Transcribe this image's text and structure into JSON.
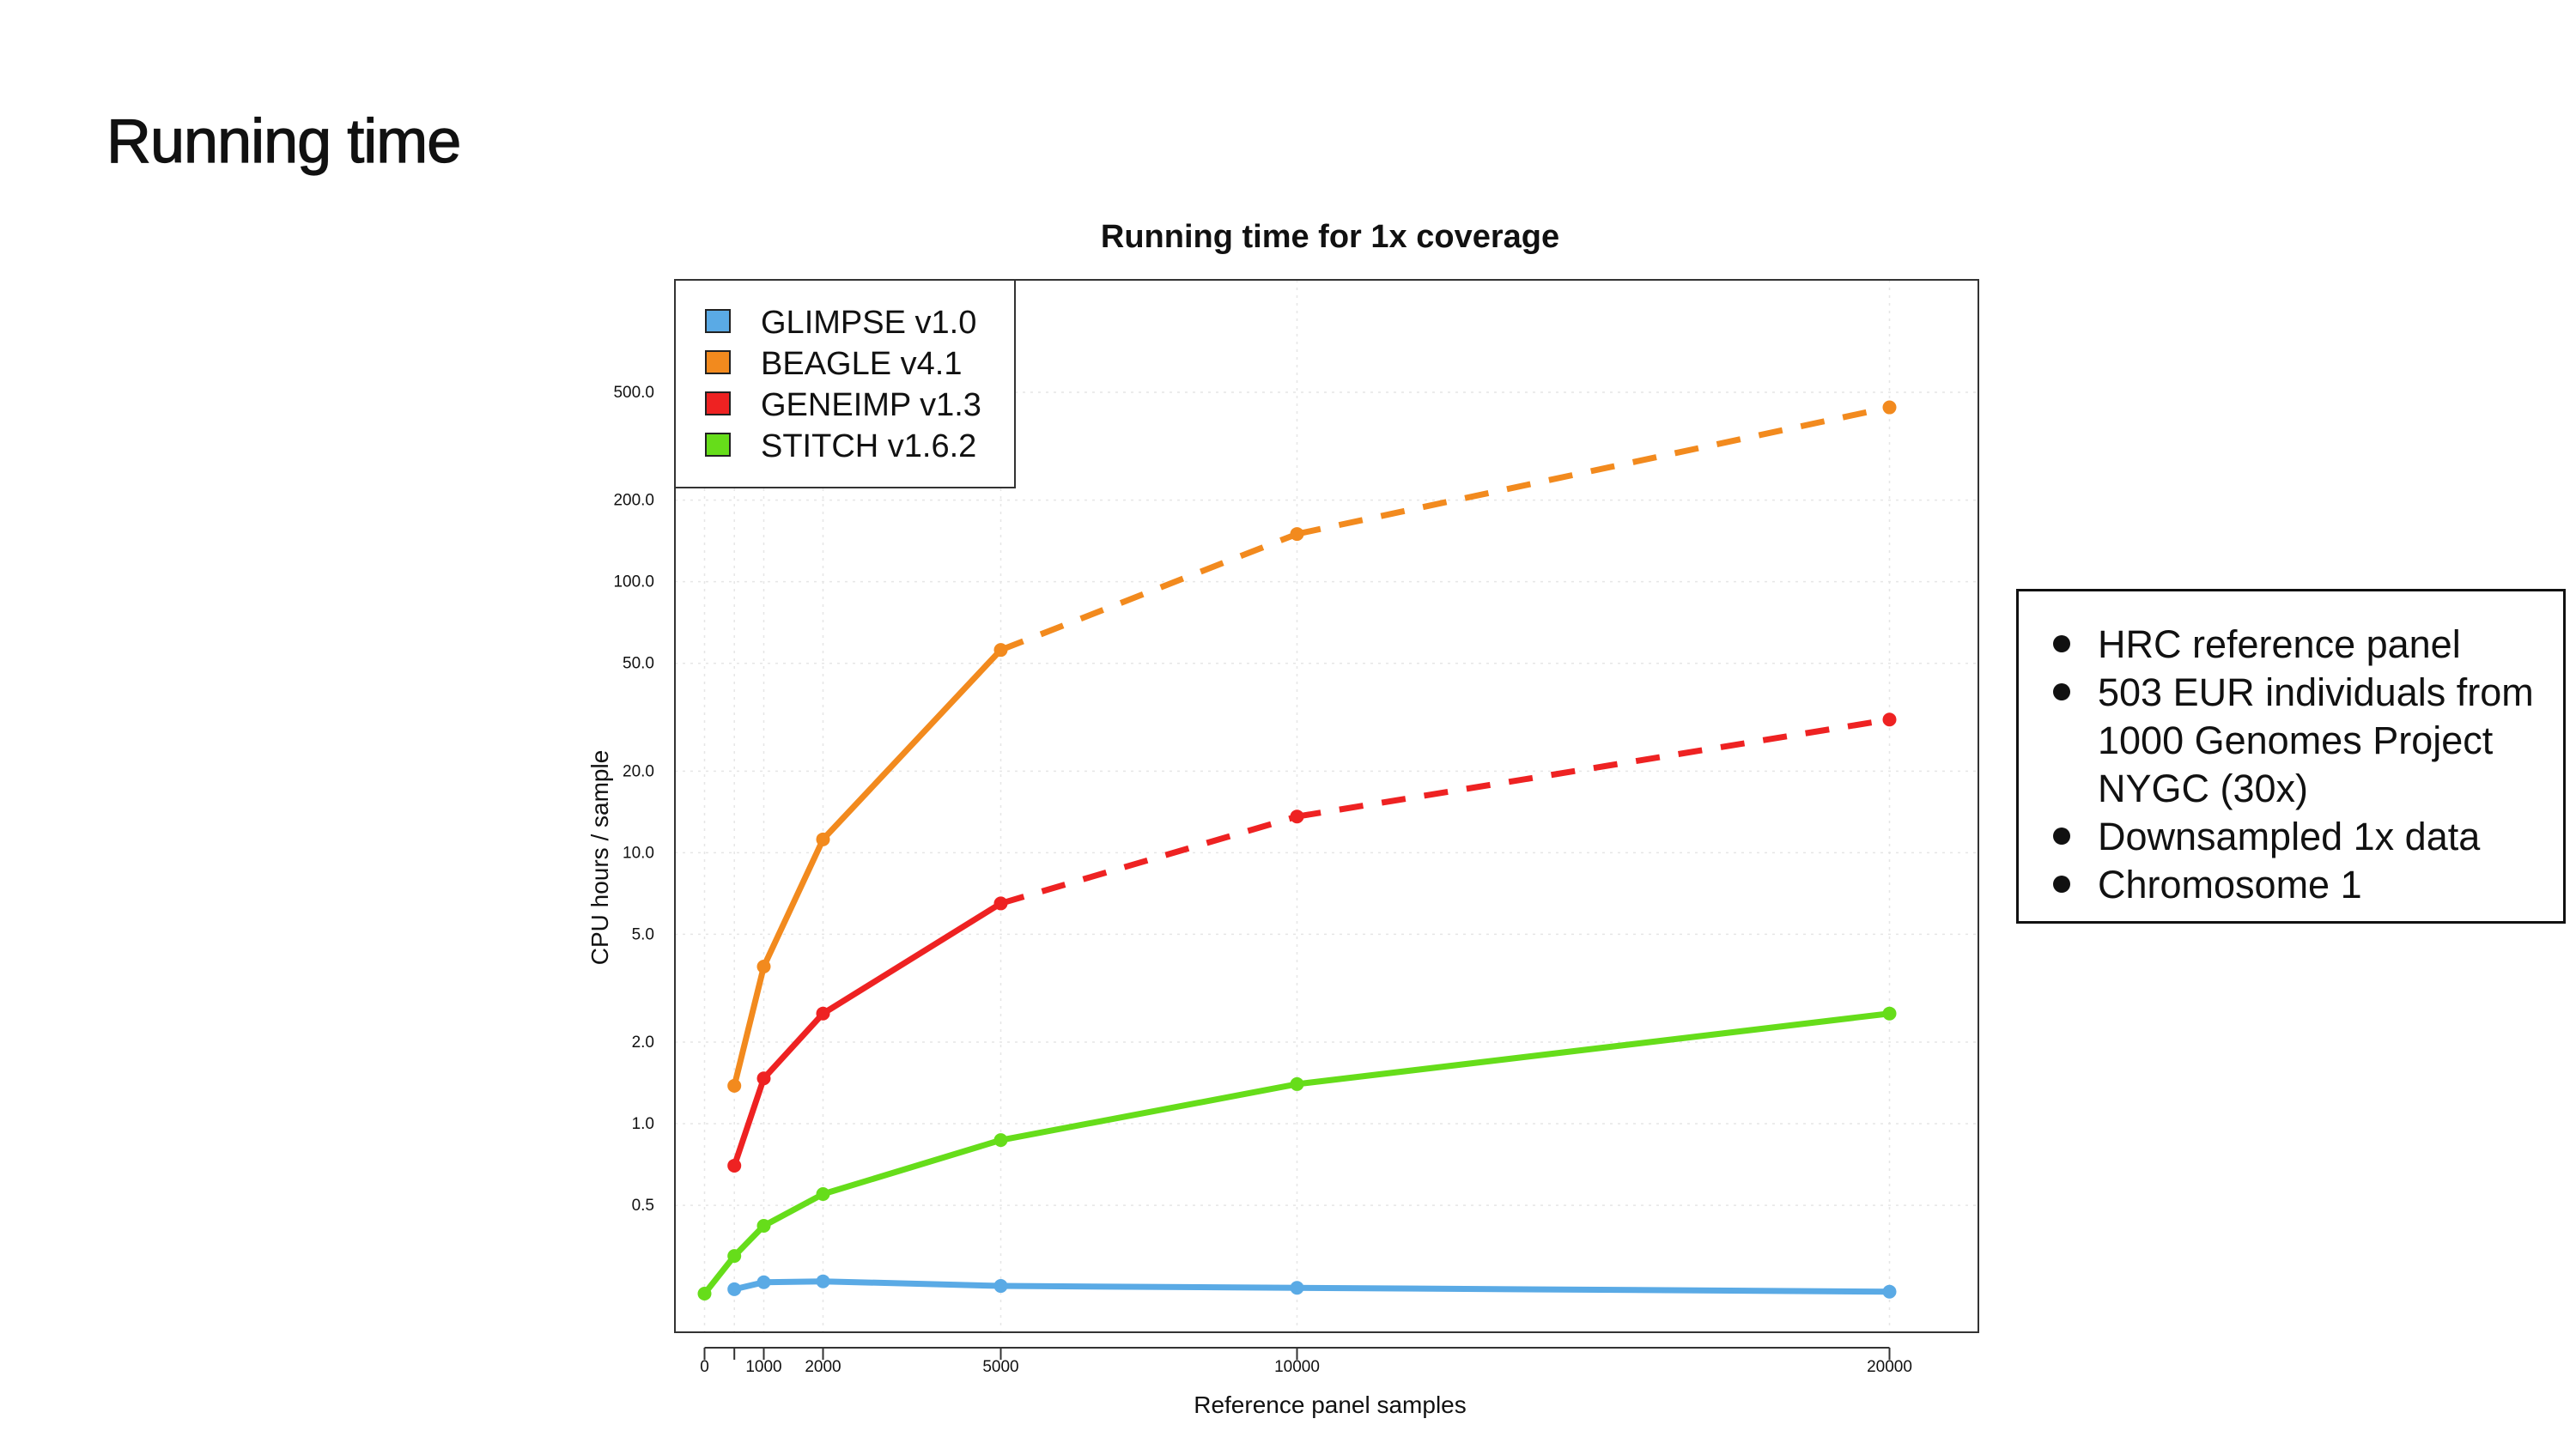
{
  "slide": {
    "title": "Running time"
  },
  "info_box": {
    "items": [
      "HRC reference panel",
      "503 EUR individuals from 1000 Genomes Project NYGC (30x)",
      "Downsampled 1x data",
      "Chromosome 1"
    ]
  },
  "chart_data": {
    "type": "line",
    "title": "Running time for 1x coverage",
    "xlabel": "Reference panel samples",
    "ylabel": "CPU hours / sample",
    "y_scale": "log",
    "xlim": [
      -500,
      21500
    ],
    "ylim": [
      0.17,
      1300
    ],
    "x_ticks": [
      {
        "value": 0,
        "label": "0"
      },
      {
        "value": 503,
        "label": ""
      },
      {
        "value": 1000,
        "label": "1000"
      },
      {
        "value": 2000,
        "label": "2000"
      },
      {
        "value": 5000,
        "label": "5000"
      },
      {
        "value": 10000,
        "label": "10000"
      },
      {
        "value": 20000,
        "label": "20000"
      }
    ],
    "y_ticks": [
      {
        "value": 0.5,
        "label": "0.5"
      },
      {
        "value": 1,
        "label": "1.0"
      },
      {
        "value": 2,
        "label": "2.0"
      },
      {
        "value": 5,
        "label": "5.0"
      },
      {
        "value": 10,
        "label": "10.0"
      },
      {
        "value": 20,
        "label": "20.0"
      },
      {
        "value": 50,
        "label": "50.0"
      },
      {
        "value": 100,
        "label": "100.0"
      },
      {
        "value": 200,
        "label": "200.0"
      },
      {
        "value": 500,
        "label": "500.0"
      }
    ],
    "grid": true,
    "legend_position": "top-left",
    "series": [
      {
        "name": "GLIMPSE v1.0",
        "color": "#5aaae5",
        "x": [
          503,
          1000,
          2000,
          5000,
          10000,
          20000
        ],
        "y": [
          0.245,
          0.26,
          0.262,
          0.252,
          0.248,
          0.24
        ],
        "dashed_from_index": null
      },
      {
        "name": "BEAGLE v4.1",
        "color": "#f28a1e",
        "x": [
          503,
          1000,
          2000,
          5000,
          10000,
          20000
        ],
        "y": [
          1.38,
          3.8,
          11.2,
          56,
          150,
          440
        ],
        "dashed_from_index": 4
      },
      {
        "name": "GENEIMP v1.3",
        "color": "#ee2222",
        "x": [
          503,
          1000,
          2000,
          5000,
          10000,
          20000
        ],
        "y": [
          0.7,
          1.47,
          2.55,
          6.5,
          13.6,
          31
        ],
        "dashed_from_index": 4
      },
      {
        "name": "STITCH v1.6.2",
        "color": "#66dd1a",
        "x": [
          0,
          503,
          1000,
          2000,
          5000,
          10000,
          20000
        ],
        "y": [
          0.236,
          0.325,
          0.42,
          0.55,
          0.87,
          1.4,
          2.55
        ],
        "dashed_from_index": null
      }
    ]
  }
}
